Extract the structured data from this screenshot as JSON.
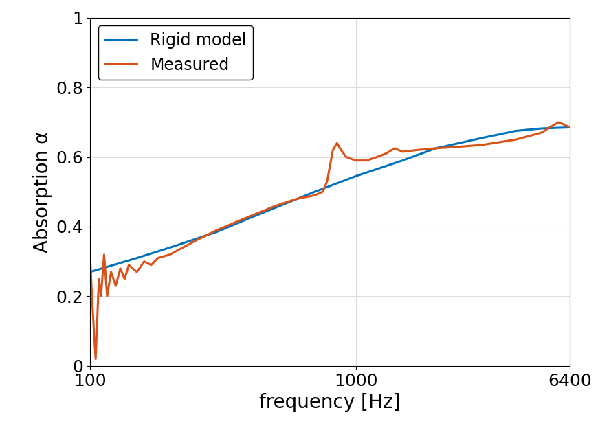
{
  "chart_data": {
    "type": "line",
    "x_label": "frequency [Hz]",
    "y_label": "Absorption α",
    "log": "x",
    "grid": true,
    "legend": "upper left",
    "xlim": [
      100,
      6400
    ],
    "xticks": [
      100,
      1000,
      6400
    ],
    "ylim": [
      0,
      1
    ],
    "yticks": [
      0,
      0.2,
      0.4,
      0.6,
      0.8,
      1
    ],
    "series": [
      {
        "name": "Rigid model",
        "color": "#0072BD",
        "x": [
          100,
          150,
          200,
          300,
          400,
          500,
          700,
          1000,
          1500,
          2000,
          3000,
          4000,
          5000,
          6400
        ],
        "values": [
          0.27,
          0.31,
          0.34,
          0.385,
          0.425,
          0.455,
          0.5,
          0.545,
          0.59,
          0.625,
          0.655,
          0.675,
          0.682,
          0.685
        ]
      },
      {
        "name": "Measured",
        "color": "#D95319",
        "x": [
          100,
          102,
          105,
          108,
          110,
          113,
          116,
          120,
          125,
          130,
          135,
          140,
          150,
          160,
          170,
          180,
          200,
          250,
          300,
          400,
          500,
          600,
          700,
          750,
          780,
          820,
          850,
          880,
          920,
          1000,
          1100,
          1200,
          1300,
          1400,
          1500,
          1700,
          2000,
          2500,
          3000,
          4000,
          5000,
          5500,
          5800,
          6000,
          6400
        ],
        "values": [
          0.32,
          0.18,
          0.02,
          0.25,
          0.2,
          0.32,
          0.2,
          0.27,
          0.23,
          0.28,
          0.25,
          0.29,
          0.27,
          0.3,
          0.29,
          0.31,
          0.32,
          0.36,
          0.39,
          0.43,
          0.46,
          0.48,
          0.49,
          0.5,
          0.53,
          0.62,
          0.64,
          0.62,
          0.6,
          0.59,
          0.59,
          0.6,
          0.61,
          0.625,
          0.615,
          0.62,
          0.625,
          0.63,
          0.635,
          0.65,
          0.67,
          0.69,
          0.7,
          0.695,
          0.685
        ]
      }
    ]
  }
}
